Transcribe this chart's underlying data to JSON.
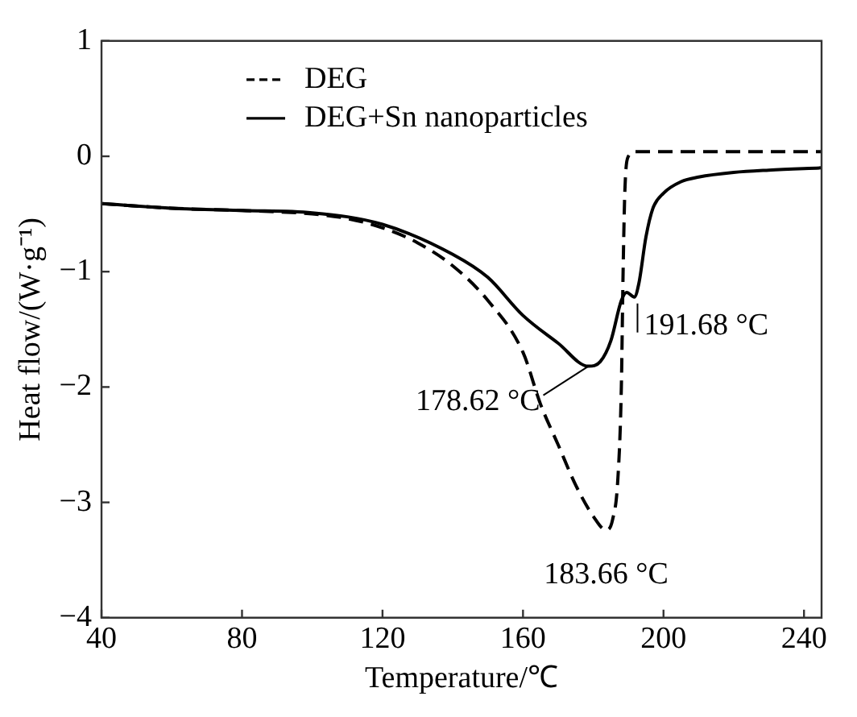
{
  "chart_data": {
    "type": "line",
    "xlabel": "Temperature/℃",
    "ylabel": "Heat flow/(W·g⁻¹)",
    "xlim": [
      40,
      245
    ],
    "xticks": [
      40,
      80,
      120,
      160,
      200,
      240
    ],
    "ylim": [
      -4,
      1
    ],
    "yticks": [
      -4,
      -3,
      -2,
      -1,
      0,
      1
    ],
    "grid": false,
    "legend": "top left",
    "marker": "none",
    "series": [
      {
        "name": "DEG",
        "color": "#000000",
        "line_style": "dashed",
        "x": [
          40,
          60,
          80,
          100,
          110,
          120,
          130,
          140,
          150,
          160,
          165,
          170,
          175,
          180,
          183.66,
          185.5,
          187,
          188,
          188.5,
          189,
          190,
          192,
          245
        ],
        "values": [
          -0.41,
          -0.45,
          -0.47,
          -0.5,
          -0.54,
          -0.62,
          -0.75,
          -0.95,
          -1.25,
          -1.7,
          -2.15,
          -2.5,
          -2.85,
          -3.12,
          -3.24,
          -3.15,
          -2.8,
          -2.0,
          -1.0,
          -0.3,
          0.0,
          0.04,
          0.04
        ]
      },
      {
        "name": "DEG+Sn nanoparticles",
        "color": "#000000",
        "line_style": "solid",
        "x": [
          40,
          60,
          80,
          100,
          120,
          140,
          150,
          160,
          170,
          178.62,
          182,
          185,
          188,
          189.5,
          191.68,
          193,
          195,
          197,
          200,
          205,
          210,
          220,
          230,
          245
        ],
        "values": [
          -0.41,
          -0.45,
          -0.47,
          -0.49,
          -0.59,
          -0.85,
          -1.05,
          -1.38,
          -1.62,
          -1.82,
          -1.78,
          -1.6,
          -1.25,
          -1.18,
          -1.22,
          -1.1,
          -0.7,
          -0.45,
          -0.32,
          -0.22,
          -0.18,
          -0.14,
          -0.12,
          -0.1
        ]
      }
    ],
    "annotations": [
      {
        "text": "178.62 °C",
        "x": 178.62,
        "y": -1.82
      },
      {
        "text": "183.66 °C",
        "x": 183.66,
        "y": -3.24
      },
      {
        "text": "191.68 °C",
        "x": 191.68,
        "y": -1.22
      }
    ]
  }
}
